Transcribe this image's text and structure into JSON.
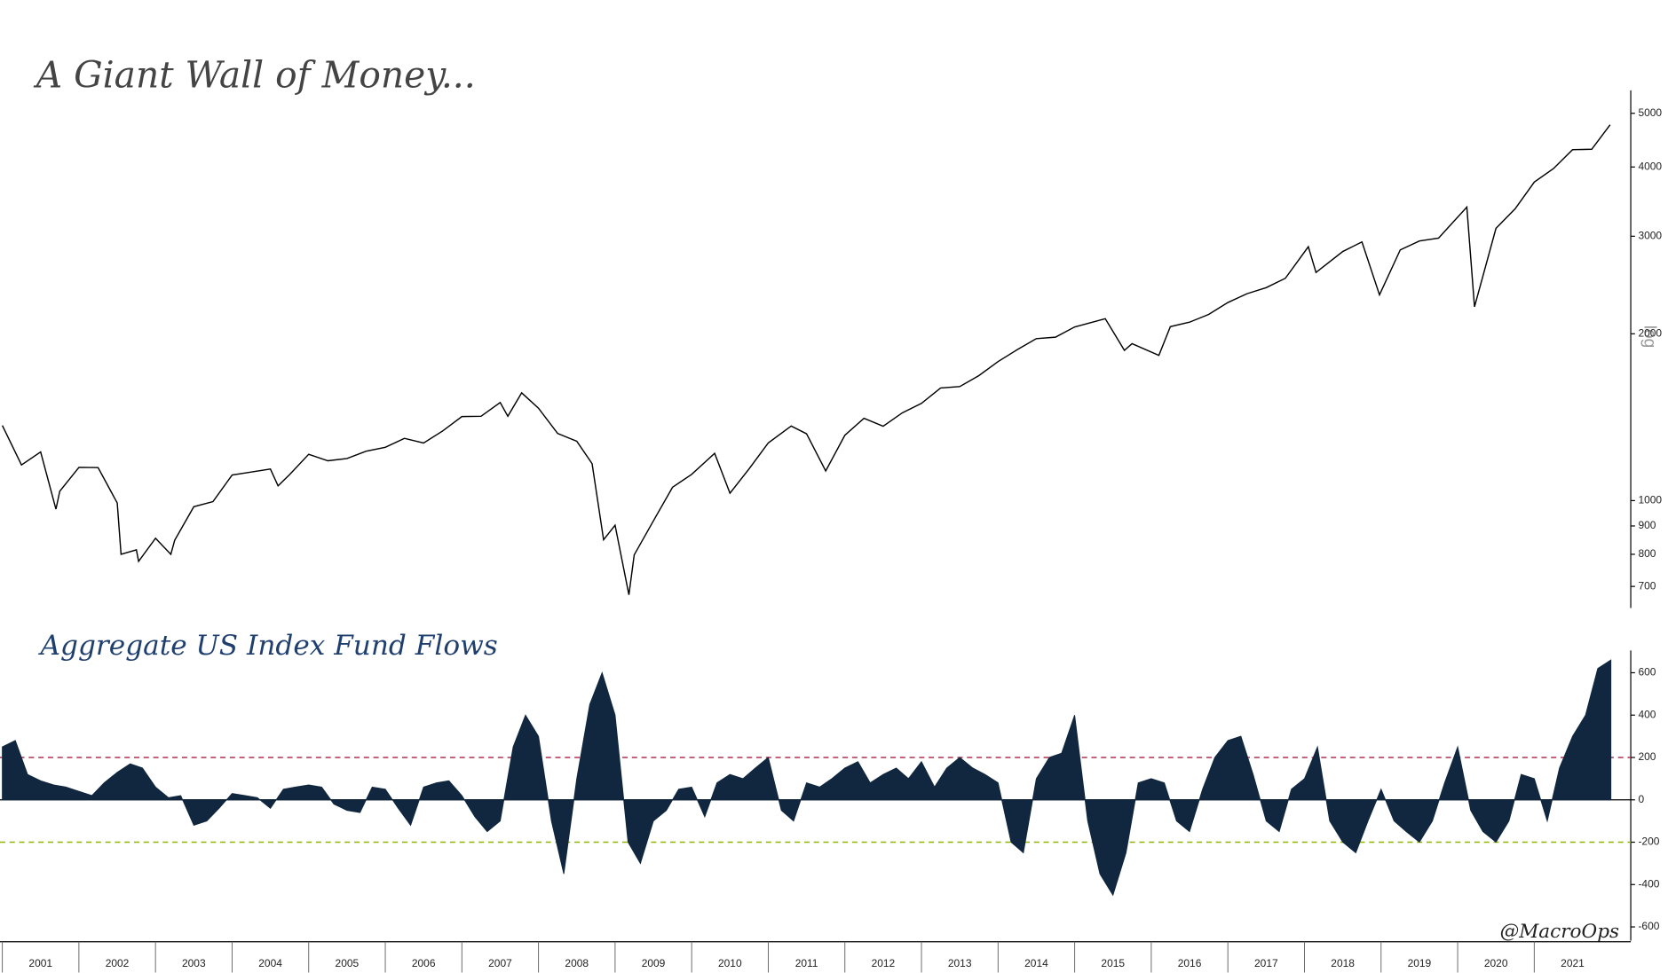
{
  "chart_data": [
    {
      "type": "line",
      "title": "A Giant Wall of Money...",
      "axis_label": "log",
      "log_scale": true,
      "color": "#000000",
      "xlim": [
        2000.97,
        2022.26
      ],
      "ylim": [
        640,
        5500
      ],
      "yticks": [
        700,
        800,
        900,
        1000,
        2000,
        3000,
        4000,
        5000
      ],
      "x": [
        2001.0,
        2001.25,
        2001.5,
        2001.7,
        2001.75,
        2002.0,
        2002.25,
        2002.5,
        2002.55,
        2002.75,
        2002.78,
        2003.0,
        2003.2,
        2003.25,
        2003.5,
        2003.75,
        2004.0,
        2004.25,
        2004.5,
        2004.6,
        2004.75,
        2005.0,
        2005.25,
        2005.5,
        2005.75,
        2006.0,
        2006.25,
        2006.5,
        2006.75,
        2007.0,
        2007.25,
        2007.5,
        2007.6,
        2007.78,
        2008.0,
        2008.25,
        2008.5,
        2008.7,
        2008.85,
        2009.0,
        2009.18,
        2009.25,
        2009.5,
        2009.75,
        2010.0,
        2010.3,
        2010.5,
        2010.75,
        2011.0,
        2011.3,
        2011.5,
        2011.75,
        2012.0,
        2012.25,
        2012.5,
        2012.75,
        2013.0,
        2013.25,
        2013.5,
        2013.75,
        2014.0,
        2014.25,
        2014.5,
        2014.75,
        2015.0,
        2015.4,
        2015.65,
        2015.75,
        2016.1,
        2016.25,
        2016.5,
        2016.75,
        2017.0,
        2017.25,
        2017.5,
        2017.75,
        2018.05,
        2018.15,
        2018.5,
        2018.75,
        2018.98,
        2019.25,
        2019.5,
        2019.75,
        2020.12,
        2020.22,
        2020.5,
        2020.75,
        2021.0,
        2021.25,
        2021.5,
        2021.75,
        2021.99
      ],
      "values": [
        1366,
        1160,
        1224,
        965,
        1040,
        1148,
        1147,
        990,
        800,
        815,
        777,
        855,
        800,
        848,
        975,
        996,
        1112,
        1126,
        1140,
        1063,
        1114,
        1212,
        1180,
        1191,
        1228,
        1248,
        1295,
        1270,
        1336,
        1418,
        1420,
        1503,
        1420,
        1565,
        1468,
        1322,
        1280,
        1166,
        850,
        903,
        676,
        798,
        919,
        1057,
        1115,
        1217,
        1031,
        1141,
        1271,
        1363,
        1320,
        1131,
        1312,
        1408,
        1362,
        1440,
        1498,
        1597,
        1606,
        1681,
        1782,
        1872,
        1960,
        1972,
        2058,
        2130,
        1867,
        1920,
        1829,
        2060,
        2099,
        2168,
        2278,
        2363,
        2423,
        2519,
        2872,
        2581,
        2816,
        2930,
        2351,
        2834,
        2942,
        2977,
        3386,
        2237,
        3100,
        3363,
        3756,
        3973,
        4298,
        4307,
        4766
      ]
    },
    {
      "type": "area",
      "title": "Aggregate US Index Fund Flows",
      "annotation": "@MacroOps",
      "color": "#10273f",
      "xlim": [
        2000.97,
        2022.26
      ],
      "ylim": [
        -665,
        705
      ],
      "yticks": [
        -600,
        -400,
        -200,
        0,
        200,
        400,
        600
      ],
      "xticks": [
        2001,
        2002,
        2003,
        2004,
        2005,
        2006,
        2007,
        2008,
        2009,
        2010,
        2011,
        2012,
        2013,
        2014,
        2015,
        2016,
        2017,
        2018,
        2019,
        2020,
        2021
      ],
      "hlines": [
        {
          "value": 200,
          "color": "#b03050"
        },
        {
          "value": -200,
          "color": "#8db600"
        }
      ],
      "x": [
        2001.0,
        2001.17,
        2001.33,
        2001.5,
        2001.67,
        2001.83,
        2002.0,
        2002.17,
        2002.33,
        2002.5,
        2002.67,
        2002.83,
        2003.0,
        2003.17,
        2003.33,
        2003.5,
        2003.67,
        2003.83,
        2004.0,
        2004.17,
        2004.33,
        2004.5,
        2004.67,
        2004.83,
        2005.0,
        2005.17,
        2005.33,
        2005.5,
        2005.67,
        2005.83,
        2006.0,
        2006.17,
        2006.33,
        2006.5,
        2006.67,
        2006.83,
        2007.0,
        2007.17,
        2007.33,
        2007.5,
        2007.67,
        2007.83,
        2008.0,
        2008.17,
        2008.33,
        2008.5,
        2008.67,
        2008.83,
        2009.0,
        2009.17,
        2009.33,
        2009.5,
        2009.67,
        2009.83,
        2010.0,
        2010.17,
        2010.33,
        2010.5,
        2010.67,
        2010.83,
        2011.0,
        2011.17,
        2011.33,
        2011.5,
        2011.67,
        2011.83,
        2012.0,
        2012.17,
        2012.33,
        2012.5,
        2012.67,
        2012.83,
        2013.0,
        2013.17,
        2013.33,
        2013.5,
        2013.67,
        2013.83,
        2014.0,
        2014.17,
        2014.33,
        2014.5,
        2014.67,
        2014.83,
        2015.0,
        2015.17,
        2015.33,
        2015.5,
        2015.67,
        2015.83,
        2016.0,
        2016.17,
        2016.33,
        2016.5,
        2016.67,
        2016.83,
        2017.0,
        2017.17,
        2017.33,
        2017.5,
        2017.67,
        2017.83,
        2018.0,
        2018.17,
        2018.33,
        2018.5,
        2018.67,
        2018.83,
        2019.0,
        2019.17,
        2019.33,
        2019.5,
        2019.67,
        2019.83,
        2020.0,
        2020.17,
        2020.33,
        2020.5,
        2020.67,
        2020.83,
        2021.0,
        2021.17,
        2021.33,
        2021.5,
        2021.67,
        2021.83,
        2022.0
      ],
      "values": [
        250,
        280,
        120,
        90,
        70,
        60,
        40,
        20,
        80,
        130,
        170,
        150,
        60,
        10,
        20,
        -120,
        -100,
        -40,
        30,
        20,
        10,
        -40,
        50,
        60,
        70,
        60,
        -20,
        -50,
        -60,
        60,
        50,
        -40,
        -120,
        60,
        80,
        90,
        20,
        -80,
        -150,
        -100,
        250,
        400,
        300,
        -100,
        -350,
        100,
        450,
        600,
        400,
        -200,
        -300,
        -100,
        -50,
        50,
        60,
        -80,
        80,
        120,
        100,
        150,
        200,
        -50,
        -100,
        80,
        60,
        100,
        150,
        180,
        80,
        120,
        150,
        100,
        180,
        60,
        150,
        200,
        150,
        120,
        80,
        -200,
        -250,
        100,
        200,
        220,
        400,
        -100,
        -350,
        -450,
        -250,
        80,
        100,
        80,
        -100,
        -150,
        50,
        200,
        280,
        300,
        120,
        -100,
        -150,
        50,
        100,
        250,
        -100,
        -200,
        -250,
        -100,
        50,
        -100,
        -150,
        -200,
        -100,
        80,
        250,
        -50,
        -150,
        -200,
        -100,
        120,
        100,
        -100,
        150,
        300,
        400,
        620,
        660
      ]
    }
  ]
}
